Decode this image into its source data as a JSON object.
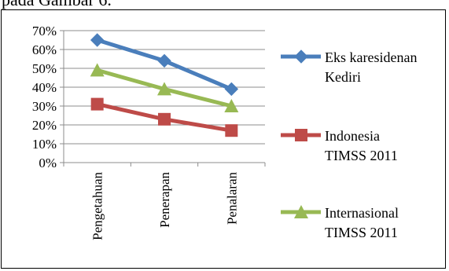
{
  "caption": "pada Gambar 6.",
  "chart_data": {
    "type": "line",
    "categories": [
      "Pengetahuan",
      "Penerapan",
      "Penalaran"
    ],
    "ylim": [
      0,
      70
    ],
    "yticks": [
      "0%",
      "10%",
      "20%",
      "30%",
      "40%",
      "50%",
      "60%",
      "70%"
    ],
    "grid": true,
    "legend_position": "right",
    "series": [
      {
        "name_lines": [
          "Eks karesidenan",
          "Kediri"
        ],
        "values": [
          65,
          54,
          39
        ],
        "color": "#4a7ebb",
        "marker": "diamond"
      },
      {
        "name_lines": [
          "Indonesia",
          "TIMSS 2011"
        ],
        "values": [
          31,
          23,
          17
        ],
        "color": "#be4b48",
        "marker": "square"
      },
      {
        "name_lines": [
          "Internasional",
          "TIMSS 2011"
        ],
        "values": [
          49,
          39,
          30
        ],
        "color": "#98b954",
        "marker": "triangle"
      }
    ]
  }
}
